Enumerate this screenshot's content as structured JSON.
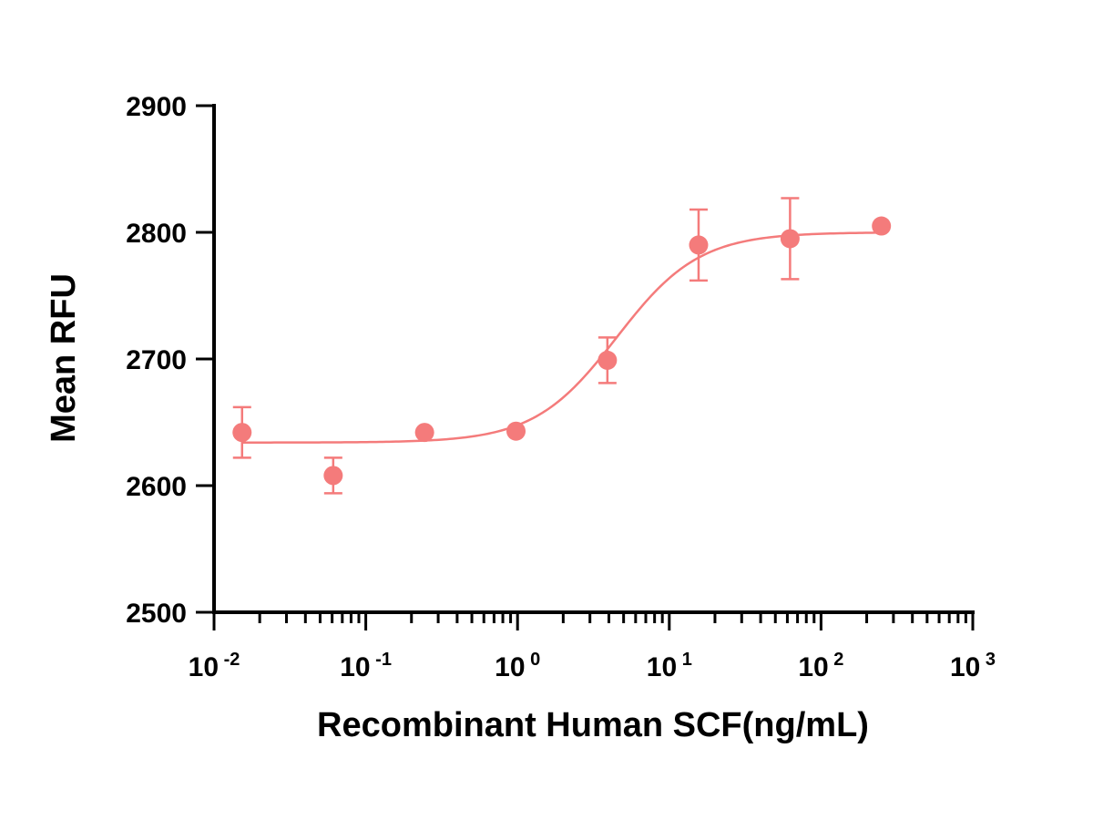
{
  "chart_data": {
    "type": "scatter",
    "xlabel": "Recombinant Human SCF(ng/mL)",
    "ylabel": "Mean RFU",
    "xscale": "log10",
    "xlim": [
      0.01,
      1000
    ],
    "ylim": [
      2500,
      2900
    ],
    "x_ticks": [
      {
        "value": 0.01,
        "base": "10",
        "exp": "-2"
      },
      {
        "value": 0.1,
        "base": "10",
        "exp": "-1"
      },
      {
        "value": 1,
        "base": "10",
        "exp": "0"
      },
      {
        "value": 10,
        "base": "10",
        "exp": "1"
      },
      {
        "value": 100,
        "base": "10",
        "exp": "2"
      },
      {
        "value": 1000,
        "base": "10",
        "exp": "3"
      }
    ],
    "y_ticks": [
      2500,
      2600,
      2700,
      2800,
      2900
    ],
    "grid": false,
    "color": "#F47B7B",
    "series": [
      {
        "x": [
          0.0153,
          0.061,
          0.244,
          0.977,
          3.91,
          15.6,
          62.5,
          250
        ],
        "y": [
          2642,
          2608,
          2642,
          2643,
          2699,
          2790,
          2795,
          2805
        ],
        "err": [
          20,
          14,
          0,
          0,
          18,
          28,
          32,
          0
        ]
      }
    ],
    "fit": {
      "model": "4PL",
      "bottom": 2634,
      "top": 2800,
      "ec50": 4.5,
      "hill": 1.6
    }
  }
}
